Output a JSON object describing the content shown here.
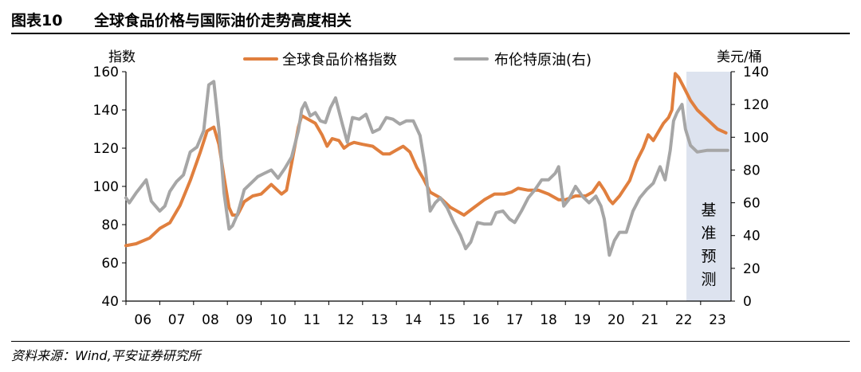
{
  "figure": {
    "label": "图表10",
    "title": "全球食品价格与国际油价走势高度相关",
    "source": "资料来源：Wind,平安证券研究所"
  },
  "chart_data": {
    "type": "line",
    "left_axis": {
      "title": "指数",
      "range": [
        40,
        160
      ],
      "ticks": [
        40,
        60,
        80,
        100,
        120,
        140,
        160
      ]
    },
    "right_axis": {
      "title": "美元/桶",
      "range": [
        0,
        140
      ],
      "ticks": [
        0,
        20,
        40,
        60,
        80,
        100,
        120,
        140
      ]
    },
    "x_axis": {
      "range": [
        2006,
        2023.9
      ],
      "tick_labels": [
        "06",
        "07",
        "08",
        "09",
        "10",
        "11",
        "12",
        "13",
        "14",
        "15",
        "16",
        "17",
        "18",
        "19",
        "20",
        "21",
        "22",
        "23"
      ]
    },
    "shaded_region": {
      "from": 2022.58,
      "to": 2023.9,
      "label": [
        "基",
        "准",
        "预",
        "测"
      ],
      "color": "#dde3ef"
    },
    "series": [
      {
        "name": "全球食品价格指数",
        "axis": "left",
        "color": "#e07f3e",
        "points": [
          [
            2006,
            69
          ],
          [
            2006.3,
            70
          ],
          [
            2006.7,
            73
          ],
          [
            2007,
            78
          ],
          [
            2007.3,
            81
          ],
          [
            2007.6,
            90
          ],
          [
            2007.9,
            103
          ],
          [
            2008.2,
            118
          ],
          [
            2008.4,
            129
          ],
          [
            2008.6,
            131
          ],
          [
            2008.75,
            122
          ],
          [
            2008.9,
            105
          ],
          [
            2009.05,
            89
          ],
          [
            2009.15,
            85
          ],
          [
            2009.3,
            85
          ],
          [
            2009.5,
            92
          ],
          [
            2009.75,
            95
          ],
          [
            2010,
            96
          ],
          [
            2010.3,
            101
          ],
          [
            2010.6,
            96
          ],
          [
            2010.75,
            98
          ],
          [
            2010.9,
            112
          ],
          [
            2011.1,
            131
          ],
          [
            2011.2,
            137
          ],
          [
            2011.4,
            135
          ],
          [
            2011.6,
            133
          ],
          [
            2011.8,
            127
          ],
          [
            2011.95,
            121
          ],
          [
            2012.1,
            125
          ],
          [
            2012.3,
            124
          ],
          [
            2012.45,
            120
          ],
          [
            2012.6,
            122
          ],
          [
            2012.75,
            123
          ],
          [
            2013,
            122
          ],
          [
            2013.3,
            121
          ],
          [
            2013.6,
            117
          ],
          [
            2013.8,
            117
          ],
          [
            2014,
            119
          ],
          [
            2014.2,
            121
          ],
          [
            2014.4,
            118
          ],
          [
            2014.6,
            110
          ],
          [
            2014.8,
            104
          ],
          [
            2015,
            97
          ],
          [
            2015.3,
            94
          ],
          [
            2015.6,
            89
          ],
          [
            2016,
            85
          ],
          [
            2016.3,
            89
          ],
          [
            2016.6,
            93
          ],
          [
            2016.9,
            96
          ],
          [
            2017.2,
            96
          ],
          [
            2017.4,
            97
          ],
          [
            2017.6,
            99
          ],
          [
            2017.9,
            98
          ],
          [
            2018.2,
            98
          ],
          [
            2018.5,
            96
          ],
          [
            2018.8,
            93
          ],
          [
            2019,
            93
          ],
          [
            2019.3,
            95
          ],
          [
            2019.6,
            95
          ],
          [
            2019.8,
            97
          ],
          [
            2020,
            102
          ],
          [
            2020.15,
            98
          ],
          [
            2020.3,
            93
          ],
          [
            2020.4,
            91
          ],
          [
            2020.6,
            95
          ],
          [
            2020.9,
            103
          ],
          [
            2021.1,
            113
          ],
          [
            2021.3,
            120
          ],
          [
            2021.45,
            127
          ],
          [
            2021.6,
            124
          ],
          [
            2021.9,
            133
          ],
          [
            2022.05,
            136
          ],
          [
            2022.15,
            140
          ],
          [
            2022.25,
            159
          ],
          [
            2022.35,
            157
          ],
          [
            2022.5,
            152
          ],
          [
            2022.7,
            145
          ],
          [
            2022.9,
            140
          ],
          [
            2023.2,
            135
          ],
          [
            2023.5,
            130
          ],
          [
            2023.75,
            128
          ]
        ]
      },
      {
        "name": "布伦特原油(右)",
        "axis": "right",
        "color": "#a6a6a6",
        "points": [
          [
            2006,
            63
          ],
          [
            2006.1,
            60
          ],
          [
            2006.3,
            66
          ],
          [
            2006.45,
            70
          ],
          [
            2006.6,
            74
          ],
          [
            2006.75,
            61
          ],
          [
            2007,
            55
          ],
          [
            2007.15,
            58
          ],
          [
            2007.3,
            67
          ],
          [
            2007.5,
            73
          ],
          [
            2007.7,
            77
          ],
          [
            2007.9,
            91
          ],
          [
            2008.1,
            94
          ],
          [
            2008.3,
            104
          ],
          [
            2008.45,
            132
          ],
          [
            2008.6,
            134
          ],
          [
            2008.75,
            105
          ],
          [
            2008.9,
            66
          ],
          [
            2009.05,
            44
          ],
          [
            2009.15,
            46
          ],
          [
            2009.3,
            53
          ],
          [
            2009.5,
            68
          ],
          [
            2009.7,
            72
          ],
          [
            2009.9,
            76
          ],
          [
            2010.1,
            78
          ],
          [
            2010.3,
            80
          ],
          [
            2010.5,
            75
          ],
          [
            2010.7,
            81
          ],
          [
            2010.9,
            88
          ],
          [
            2011.1,
            104
          ],
          [
            2011.2,
            117
          ],
          [
            2011.3,
            121
          ],
          [
            2011.45,
            113
          ],
          [
            2011.6,
            115
          ],
          [
            2011.75,
            110
          ],
          [
            2011.9,
            109
          ],
          [
            2012.05,
            118
          ],
          [
            2012.2,
            124
          ],
          [
            2012.4,
            108
          ],
          [
            2012.55,
            97
          ],
          [
            2012.7,
            112
          ],
          [
            2012.9,
            111
          ],
          [
            2013.1,
            114
          ],
          [
            2013.3,
            103
          ],
          [
            2013.5,
            105
          ],
          [
            2013.7,
            112
          ],
          [
            2013.9,
            111
          ],
          [
            2014.1,
            108
          ],
          [
            2014.3,
            110
          ],
          [
            2014.5,
            110
          ],
          [
            2014.7,
            101
          ],
          [
            2014.85,
            82
          ],
          [
            2015,
            55
          ],
          [
            2015.15,
            60
          ],
          [
            2015.3,
            63
          ],
          [
            2015.5,
            57
          ],
          [
            2015.7,
            48
          ],
          [
            2015.9,
            40
          ],
          [
            2016.05,
            32
          ],
          [
            2016.2,
            36
          ],
          [
            2016.4,
            48
          ],
          [
            2016.6,
            47
          ],
          [
            2016.8,
            47
          ],
          [
            2016.95,
            54
          ],
          [
            2017.15,
            55
          ],
          [
            2017.35,
            50
          ],
          [
            2017.5,
            48
          ],
          [
            2017.7,
            55
          ],
          [
            2017.9,
            63
          ],
          [
            2018.1,
            68
          ],
          [
            2018.3,
            74
          ],
          [
            2018.5,
            74
          ],
          [
            2018.7,
            78
          ],
          [
            2018.8,
            82
          ],
          [
            2018.95,
            58
          ],
          [
            2019.1,
            62
          ],
          [
            2019.3,
            70
          ],
          [
            2019.5,
            64
          ],
          [
            2019.7,
            60
          ],
          [
            2019.9,
            64
          ],
          [
            2020.05,
            58
          ],
          [
            2020.15,
            50
          ],
          [
            2020.3,
            28
          ],
          [
            2020.45,
            37
          ],
          [
            2020.6,
            42
          ],
          [
            2020.8,
            42
          ],
          [
            2021.0,
            55
          ],
          [
            2021.2,
            63
          ],
          [
            2021.4,
            68
          ],
          [
            2021.6,
            72
          ],
          [
            2021.8,
            82
          ],
          [
            2021.95,
            74
          ],
          [
            2022.1,
            92
          ],
          [
            2022.2,
            110
          ],
          [
            2022.3,
            115
          ],
          [
            2022.45,
            120
          ],
          [
            2022.55,
            105
          ],
          [
            2022.7,
            95
          ],
          [
            2022.9,
            91
          ],
          [
            2023.2,
            92
          ],
          [
            2023.5,
            92
          ],
          [
            2023.8,
            92
          ]
        ]
      }
    ]
  }
}
